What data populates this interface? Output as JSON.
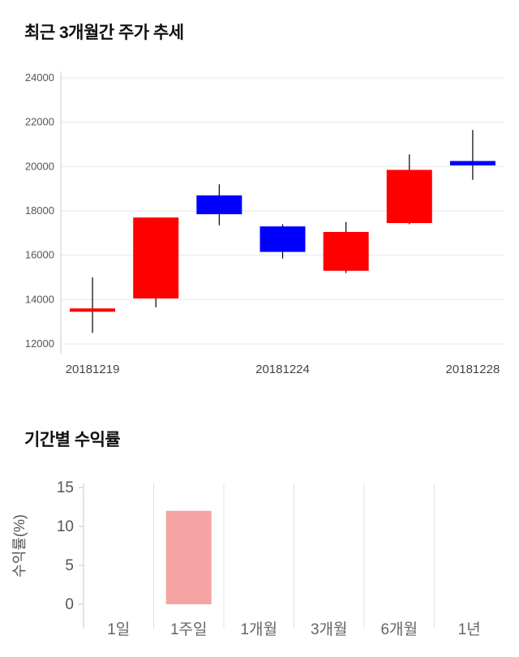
{
  "sections": {
    "price": {
      "title": "최근 3개월간 주가 추세"
    },
    "returns": {
      "title": "기간별 수익률"
    }
  },
  "chart_data": [
    {
      "type": "candlestick",
      "title": "최근 3개월간 주가 추세",
      "ylim": [
        12000,
        24000
      ],
      "y_ticks": [
        12000,
        14000,
        16000,
        18000,
        20000,
        22000,
        24000
      ],
      "x_ticks": [
        {
          "candle_index": 0,
          "label": "20181219"
        },
        {
          "candle_index": 3,
          "label": "20181224"
        },
        {
          "candle_index": 6,
          "label": "20181228"
        }
      ],
      "up_color": "#ff0000",
      "down_color": "#0000ff",
      "wick_color": "#000000",
      "grid": true,
      "candles": [
        {
          "open": 13450,
          "close": 13600,
          "high": 15000,
          "low": 12500,
          "direction": "up"
        },
        {
          "open": 14050,
          "close": 17700,
          "high": 17700,
          "low": 13650,
          "direction": "up"
        },
        {
          "open": 18700,
          "close": 17850,
          "high": 19200,
          "low": 17350,
          "direction": "down"
        },
        {
          "open": 17300,
          "close": 16150,
          "high": 17400,
          "low": 15850,
          "direction": "down"
        },
        {
          "open": 15300,
          "close": 17050,
          "high": 17500,
          "low": 15200,
          "direction": "up"
        },
        {
          "open": 17450,
          "close": 19850,
          "high": 20550,
          "low": 17400,
          "direction": "up"
        },
        {
          "open": 20250,
          "close": 20050,
          "high": 21650,
          "low": 19400,
          "direction": "down"
        }
      ]
    },
    {
      "type": "bar",
      "title": "기간별 수익률",
      "ylabel": "수익률(%)",
      "categories": [
        "1일",
        "1주일",
        "1개월",
        "3개월",
        "6개월",
        "1년"
      ],
      "values": [
        0,
        12,
        0,
        0,
        0,
        0
      ],
      "ylim": [
        0,
        15
      ],
      "y_ticks": [
        0,
        5,
        10,
        15
      ],
      "bar_color": "#f5a3a3",
      "grid": "vertical",
      "legend": "none"
    }
  ]
}
